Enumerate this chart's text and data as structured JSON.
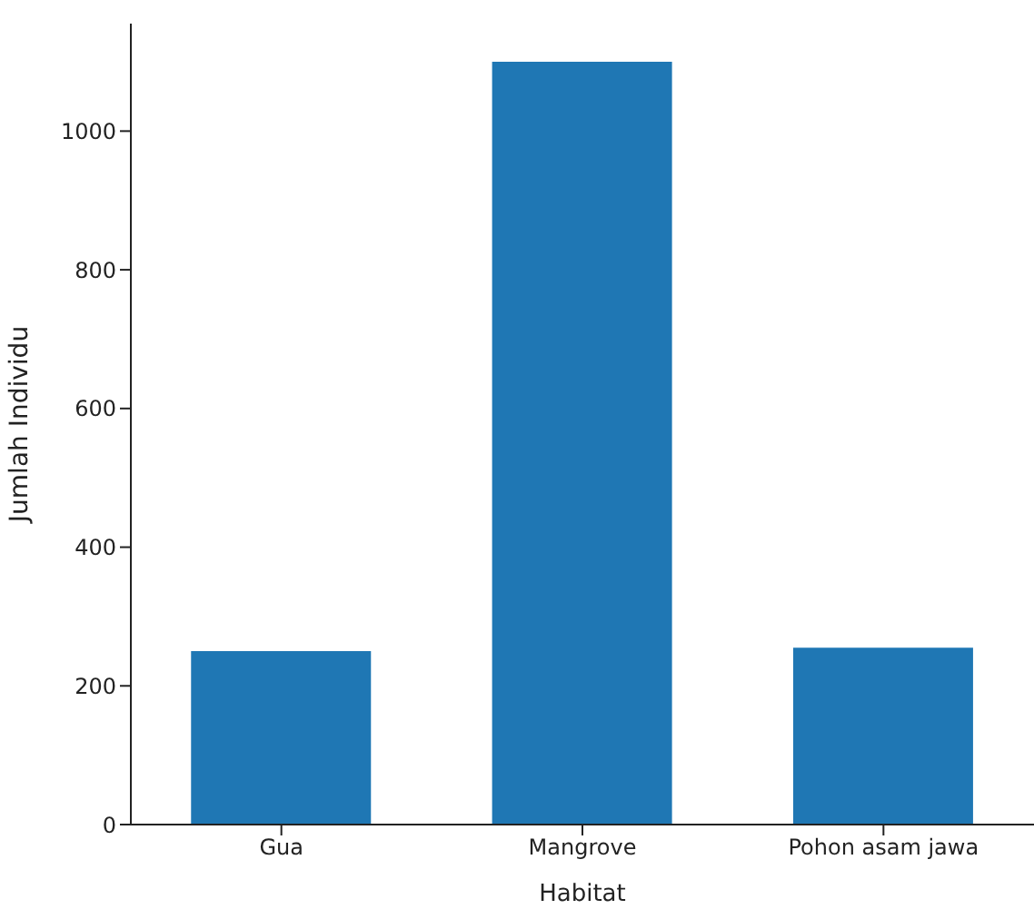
{
  "chart_data": {
    "type": "bar",
    "xlabel": "Habitat",
    "ylabel": "Jumlah Individu",
    "categories": [
      "Gua",
      "Mangrove",
      "Pohon asam jawa"
    ],
    "values": [
      250,
      1100,
      255
    ],
    "color": "#1f77b4",
    "ylim": [
      0,
      1155
    ],
    "yticks": [
      0,
      200,
      400,
      600,
      800,
      1000
    ],
    "grid": false
  }
}
